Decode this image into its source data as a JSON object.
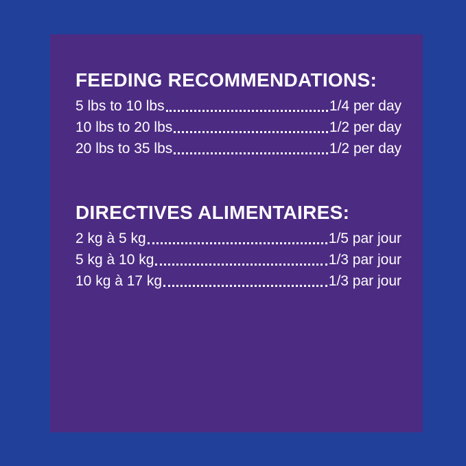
{
  "panel": {
    "background_color": "#21409a",
    "card_color": "#4c2b83",
    "text_color": "#ffffff"
  },
  "sections": [
    {
      "heading": "FEEDING RECOMMENDATIONS:",
      "rows": [
        {
          "range": "5 lbs to 10 lbs",
          "amount": "1/4 per day"
        },
        {
          "range": "10 lbs to 20 lbs",
          "amount": "1/2 per day"
        },
        {
          "range": "20 lbs to 35 lbs",
          "amount": "1/2 per day"
        }
      ]
    },
    {
      "heading": "DIRECTIVES ALIMENTAIRES:",
      "rows": [
        {
          "range": "2 kg à 5 kg",
          "amount": "1/5 par jour"
        },
        {
          "range": "5 kg à 10 kg",
          "amount": "1/3 par jour"
        },
        {
          "range": "10 kg à 17 kg",
          "amount": "1/3 par jour"
        }
      ]
    }
  ]
}
